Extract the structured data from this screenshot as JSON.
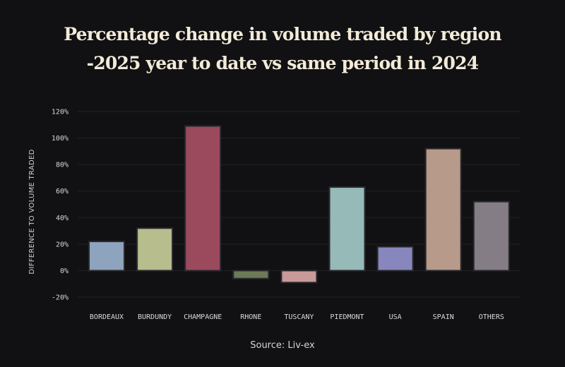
{
  "chart_data": {
    "type": "bar",
    "title": [
      "Percentage change in volume traded by region",
      "-2025 year  to date vs same period in 2024"
    ],
    "ylabel": "DIFFERENCE TO VOLUME TRADED",
    "xlabel": "",
    "ylim": [
      -20,
      120
    ],
    "yticks": [
      120,
      100,
      80,
      60,
      40,
      20,
      0,
      -20
    ],
    "ytick_labels": [
      "120%",
      "100%",
      "80%",
      "60%",
      "40%",
      "20%",
      "0%",
      "-20%"
    ],
    "grid": true,
    "categories": [
      "BORDEAUX",
      "BURDUNDY",
      "CHAMPAGNE",
      "RHONE",
      "TUSCANY",
      "PIEDMONT",
      "USA",
      "SPAIN",
      "OTHERS"
    ],
    "values": [
      22,
      32,
      109,
      -6,
      -9,
      63,
      18,
      92,
      52
    ],
    "colors": [
      "#8ea3bd",
      "#b7bd8c",
      "#9b4a5e",
      "#6c7a58",
      "#c99a9a",
      "#95bab8",
      "#8787bd",
      "#b79a8a",
      "#857d85"
    ],
    "source": "Source: Liv-ex"
  },
  "style": {
    "background": "#111113",
    "title_color": "#f3ead8",
    "grid_color": "#222226",
    "bar_stroke": "#2a2a2e"
  }
}
